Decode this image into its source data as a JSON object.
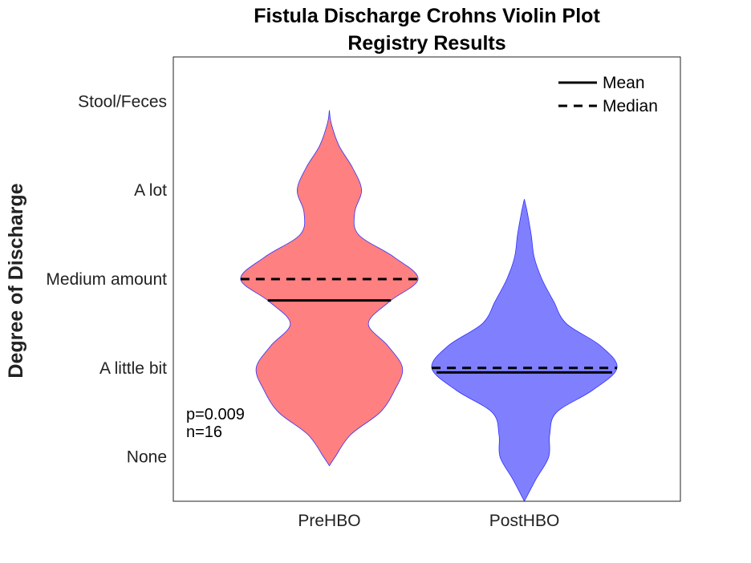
{
  "chart_data": {
    "type": "violin",
    "title": "Fistula Discharge Crohns Violin Plot",
    "subtitle": "Registry Results",
    "xlabel": "",
    "ylabel": "Degree of Discharge",
    "categories": [
      "PreHBO",
      "PostHBO"
    ],
    "y_ticks": [
      {
        "value": 0,
        "label": "None"
      },
      {
        "value": 1,
        "label": "A little bit"
      },
      {
        "value": 2,
        "label": "Medium amount"
      },
      {
        "value": 3,
        "label": "A lot"
      },
      {
        "value": 4,
        "label": "Stool/Feces"
      }
    ],
    "ylim": [
      -0.5,
      4.5
    ],
    "legend": {
      "position": "top-right",
      "entries": [
        {
          "label": "Mean",
          "style": "solid"
        },
        {
          "label": "Median",
          "style": "dashed"
        }
      ]
    },
    "annotations": [
      "p=0.009",
      "n=16"
    ],
    "series": [
      {
        "category": "PreHBO",
        "color": "#ff8080",
        "edge_color": "#3030ff",
        "mean": 1.76,
        "median": 2.0,
        "density": [
          {
            "y": -0.1,
            "w": 0.0
          },
          {
            "y": 0.0,
            "w": 0.06
          },
          {
            "y": 0.25,
            "w": 0.22
          },
          {
            "y": 0.5,
            "w": 0.52
          },
          {
            "y": 0.75,
            "w": 0.67
          },
          {
            "y": 1.0,
            "w": 0.75
          },
          {
            "y": 1.25,
            "w": 0.6
          },
          {
            "y": 1.5,
            "w": 0.4
          },
          {
            "y": 1.75,
            "w": 0.62
          },
          {
            "y": 2.0,
            "w": 0.91
          },
          {
            "y": 2.25,
            "w": 0.66
          },
          {
            "y": 2.5,
            "w": 0.3
          },
          {
            "y": 2.75,
            "w": 0.26
          },
          {
            "y": 3.0,
            "w": 0.33
          },
          {
            "y": 3.25,
            "w": 0.24
          },
          {
            "y": 3.5,
            "w": 0.1
          },
          {
            "y": 3.75,
            "w": 0.02
          },
          {
            "y": 3.9,
            "w": 0.0
          }
        ]
      },
      {
        "category": "PostHBO",
        "color": "#8080ff",
        "edge_color": "#3030ff",
        "mean": 0.95,
        "median": 1.0,
        "density": [
          {
            "y": -0.5,
            "w": 0.0
          },
          {
            "y": -0.25,
            "w": 0.12
          },
          {
            "y": 0.0,
            "w": 0.25
          },
          {
            "y": 0.25,
            "w": 0.26
          },
          {
            "y": 0.5,
            "w": 0.33
          },
          {
            "y": 0.75,
            "w": 0.7
          },
          {
            "y": 1.0,
            "w": 0.95
          },
          {
            "y": 1.25,
            "w": 0.78
          },
          {
            "y": 1.5,
            "w": 0.43
          },
          {
            "y": 1.75,
            "w": 0.3
          },
          {
            "y": 2.0,
            "w": 0.18
          },
          {
            "y": 2.25,
            "w": 0.1
          },
          {
            "y": 2.5,
            "w": 0.07
          },
          {
            "y": 2.75,
            "w": 0.03
          },
          {
            "y": 2.9,
            "w": 0.0
          }
        ]
      }
    ]
  }
}
